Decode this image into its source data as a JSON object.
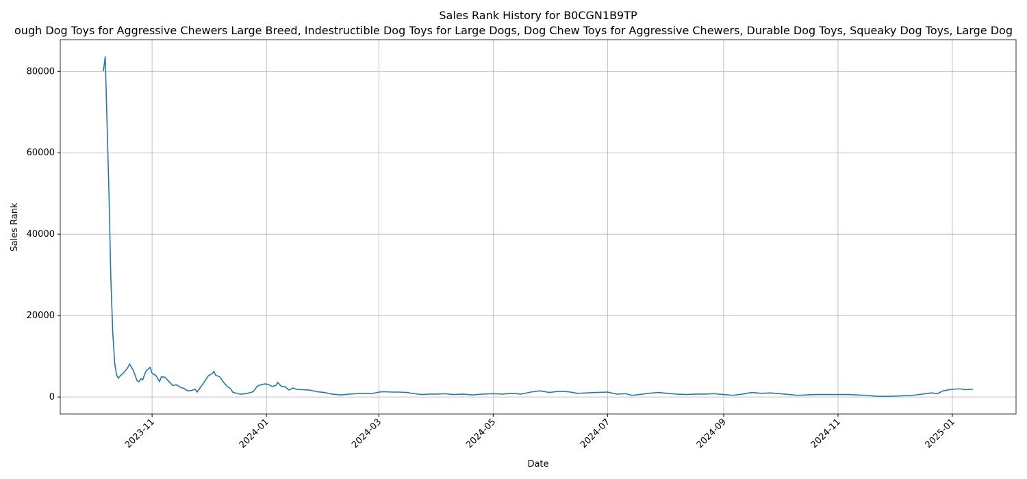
{
  "chart_data": {
    "type": "line",
    "title": "Sales Rank History for B0CGN1B9TP",
    "subtitle": "ough Dog Toys for Aggressive Chewers Large Breed, Indestructible Dog Toys for Large Dogs, Dog Chew Toys for Aggressive Chewers, Durable Dog Toys, Squeaky Dog Toys, Large Dog",
    "xlabel": "Date",
    "ylabel": "Sales Rank",
    "color": "#1f77b4",
    "grid": true,
    "x": [
      "2023-10-06",
      "2023-10-07",
      "2023-10-09",
      "2023-10-10",
      "2023-10-11",
      "2023-10-12",
      "2023-10-13",
      "2023-10-14",
      "2023-10-15",
      "2023-10-17",
      "2023-10-19",
      "2023-10-20",
      "2023-10-22",
      "2023-10-24",
      "2023-10-25",
      "2023-10-26",
      "2023-10-27",
      "2023-10-28",
      "2023-10-29",
      "2023-10-31",
      "2023-11-01",
      "2023-11-03",
      "2023-11-05",
      "2023-11-06",
      "2023-11-08",
      "2023-11-10",
      "2023-11-12",
      "2023-11-14",
      "2023-11-16",
      "2023-11-18",
      "2023-11-20",
      "2023-11-22",
      "2023-11-24",
      "2023-11-25",
      "2023-11-27",
      "2023-11-29",
      "2023-12-01",
      "2023-12-03",
      "2023-12-04",
      "2023-12-05",
      "2023-12-07",
      "2023-12-09",
      "2023-12-11",
      "2023-12-13",
      "2023-12-14",
      "2023-12-16",
      "2023-12-18",
      "2023-12-20",
      "2023-12-22",
      "2023-12-25",
      "2023-12-27",
      "2023-12-29",
      "2023-12-31",
      "2024-01-02",
      "2024-01-04",
      "2024-01-06",
      "2024-01-07",
      "2024-01-09",
      "2024-01-11",
      "2024-01-13",
      "2024-01-15",
      "2024-01-17",
      "2024-01-20",
      "2024-01-24",
      "2024-01-28",
      "2024-02-01",
      "2024-02-05",
      "2024-02-10",
      "2024-02-14",
      "2024-02-18",
      "2024-02-22",
      "2024-02-26",
      "2024-03-01",
      "2024-03-04",
      "2024-03-08",
      "2024-03-12",
      "2024-03-16",
      "2024-03-20",
      "2024-03-24",
      "2024-03-28",
      "2024-04-01",
      "2024-04-05",
      "2024-04-10",
      "2024-04-15",
      "2024-04-20",
      "2024-04-25",
      "2024-05-01",
      "2024-05-06",
      "2024-05-11",
      "2024-05-16",
      "2024-05-21",
      "2024-05-26",
      "2024-05-31",
      "2024-06-05",
      "2024-06-10",
      "2024-06-15",
      "2024-06-20",
      "2024-06-25",
      "2024-07-01",
      "2024-07-06",
      "2024-07-11",
      "2024-07-14",
      "2024-07-18",
      "2024-07-23",
      "2024-07-28",
      "2024-08-02",
      "2024-08-07",
      "2024-08-12",
      "2024-08-17",
      "2024-08-22",
      "2024-08-27",
      "2024-09-01",
      "2024-09-06",
      "2024-09-11",
      "2024-09-16",
      "2024-09-21",
      "2024-09-26",
      "2024-10-01",
      "2024-10-06",
      "2024-10-10",
      "2024-10-15",
      "2024-10-20",
      "2024-10-25",
      "2024-11-01",
      "2024-11-06",
      "2024-11-11",
      "2024-11-16",
      "2024-11-21",
      "2024-11-26",
      "2024-12-01",
      "2024-12-06",
      "2024-12-11",
      "2024-12-16",
      "2024-12-21",
      "2024-12-24",
      "2024-12-27",
      "2025-01-01",
      "2025-01-05",
      "2025-01-08",
      "2025-01-12"
    ],
    "values": [
      80000,
      83600,
      50000,
      29000,
      16000,
      8500,
      5500,
      4600,
      5200,
      6000,
      7200,
      8100,
      6500,
      4000,
      3700,
      4500,
      4200,
      5500,
      6500,
      7300,
      5800,
      5300,
      3800,
      5000,
      4800,
      3800,
      2800,
      3000,
      2400,
      2100,
      1500,
      1600,
      1900,
      1200,
      2500,
      3800,
      5200,
      5700,
      6300,
      5300,
      5000,
      3700,
      2600,
      2000,
      1200,
      900,
      700,
      750,
      900,
      1300,
      2600,
      3000,
      3200,
      3100,
      2600,
      2800,
      3600,
      2600,
      2500,
      1700,
      2200,
      1900,
      1800,
      1700,
      1300,
      1100,
      700,
      500,
      700,
      800,
      900,
      800,
      1200,
      1300,
      1200,
      1200,
      1100,
      800,
      600,
      700,
      700,
      800,
      600,
      700,
      500,
      700,
      800,
      700,
      900,
      700,
      1200,
      1500,
      1100,
      1400,
      1300,
      900,
      1000,
      1100,
      1200,
      700,
      800,
      400,
      600,
      900,
      1100,
      900,
      700,
      600,
      700,
      700,
      800,
      600,
      400,
      700,
      1100,
      900,
      1000,
      800,
      600,
      400,
      500,
      600,
      600,
      600,
      600,
      500,
      400,
      200,
      150,
      200,
      300,
      400,
      700,
      1000,
      800,
      1500,
      1900,
      2000,
      1800,
      1900
    ],
    "xlim": [
      "2023-09-13",
      "2025-02-04"
    ],
    "xticks": [
      {
        "value": "2023-11-01",
        "label": "2023-11"
      },
      {
        "value": "2024-01-01",
        "label": "2024-01"
      },
      {
        "value": "2024-03-01",
        "label": "2024-03"
      },
      {
        "value": "2024-05-01",
        "label": "2024-05"
      },
      {
        "value": "2024-07-01",
        "label": "2024-07"
      },
      {
        "value": "2024-09-01",
        "label": "2024-09"
      },
      {
        "value": "2024-11-01",
        "label": "2024-11"
      },
      {
        "value": "2025-01-01",
        "label": "2025-01"
      }
    ],
    "ylim": [
      -4180,
      87780
    ],
    "yticks": [
      0,
      20000,
      40000,
      60000,
      80000
    ]
  }
}
